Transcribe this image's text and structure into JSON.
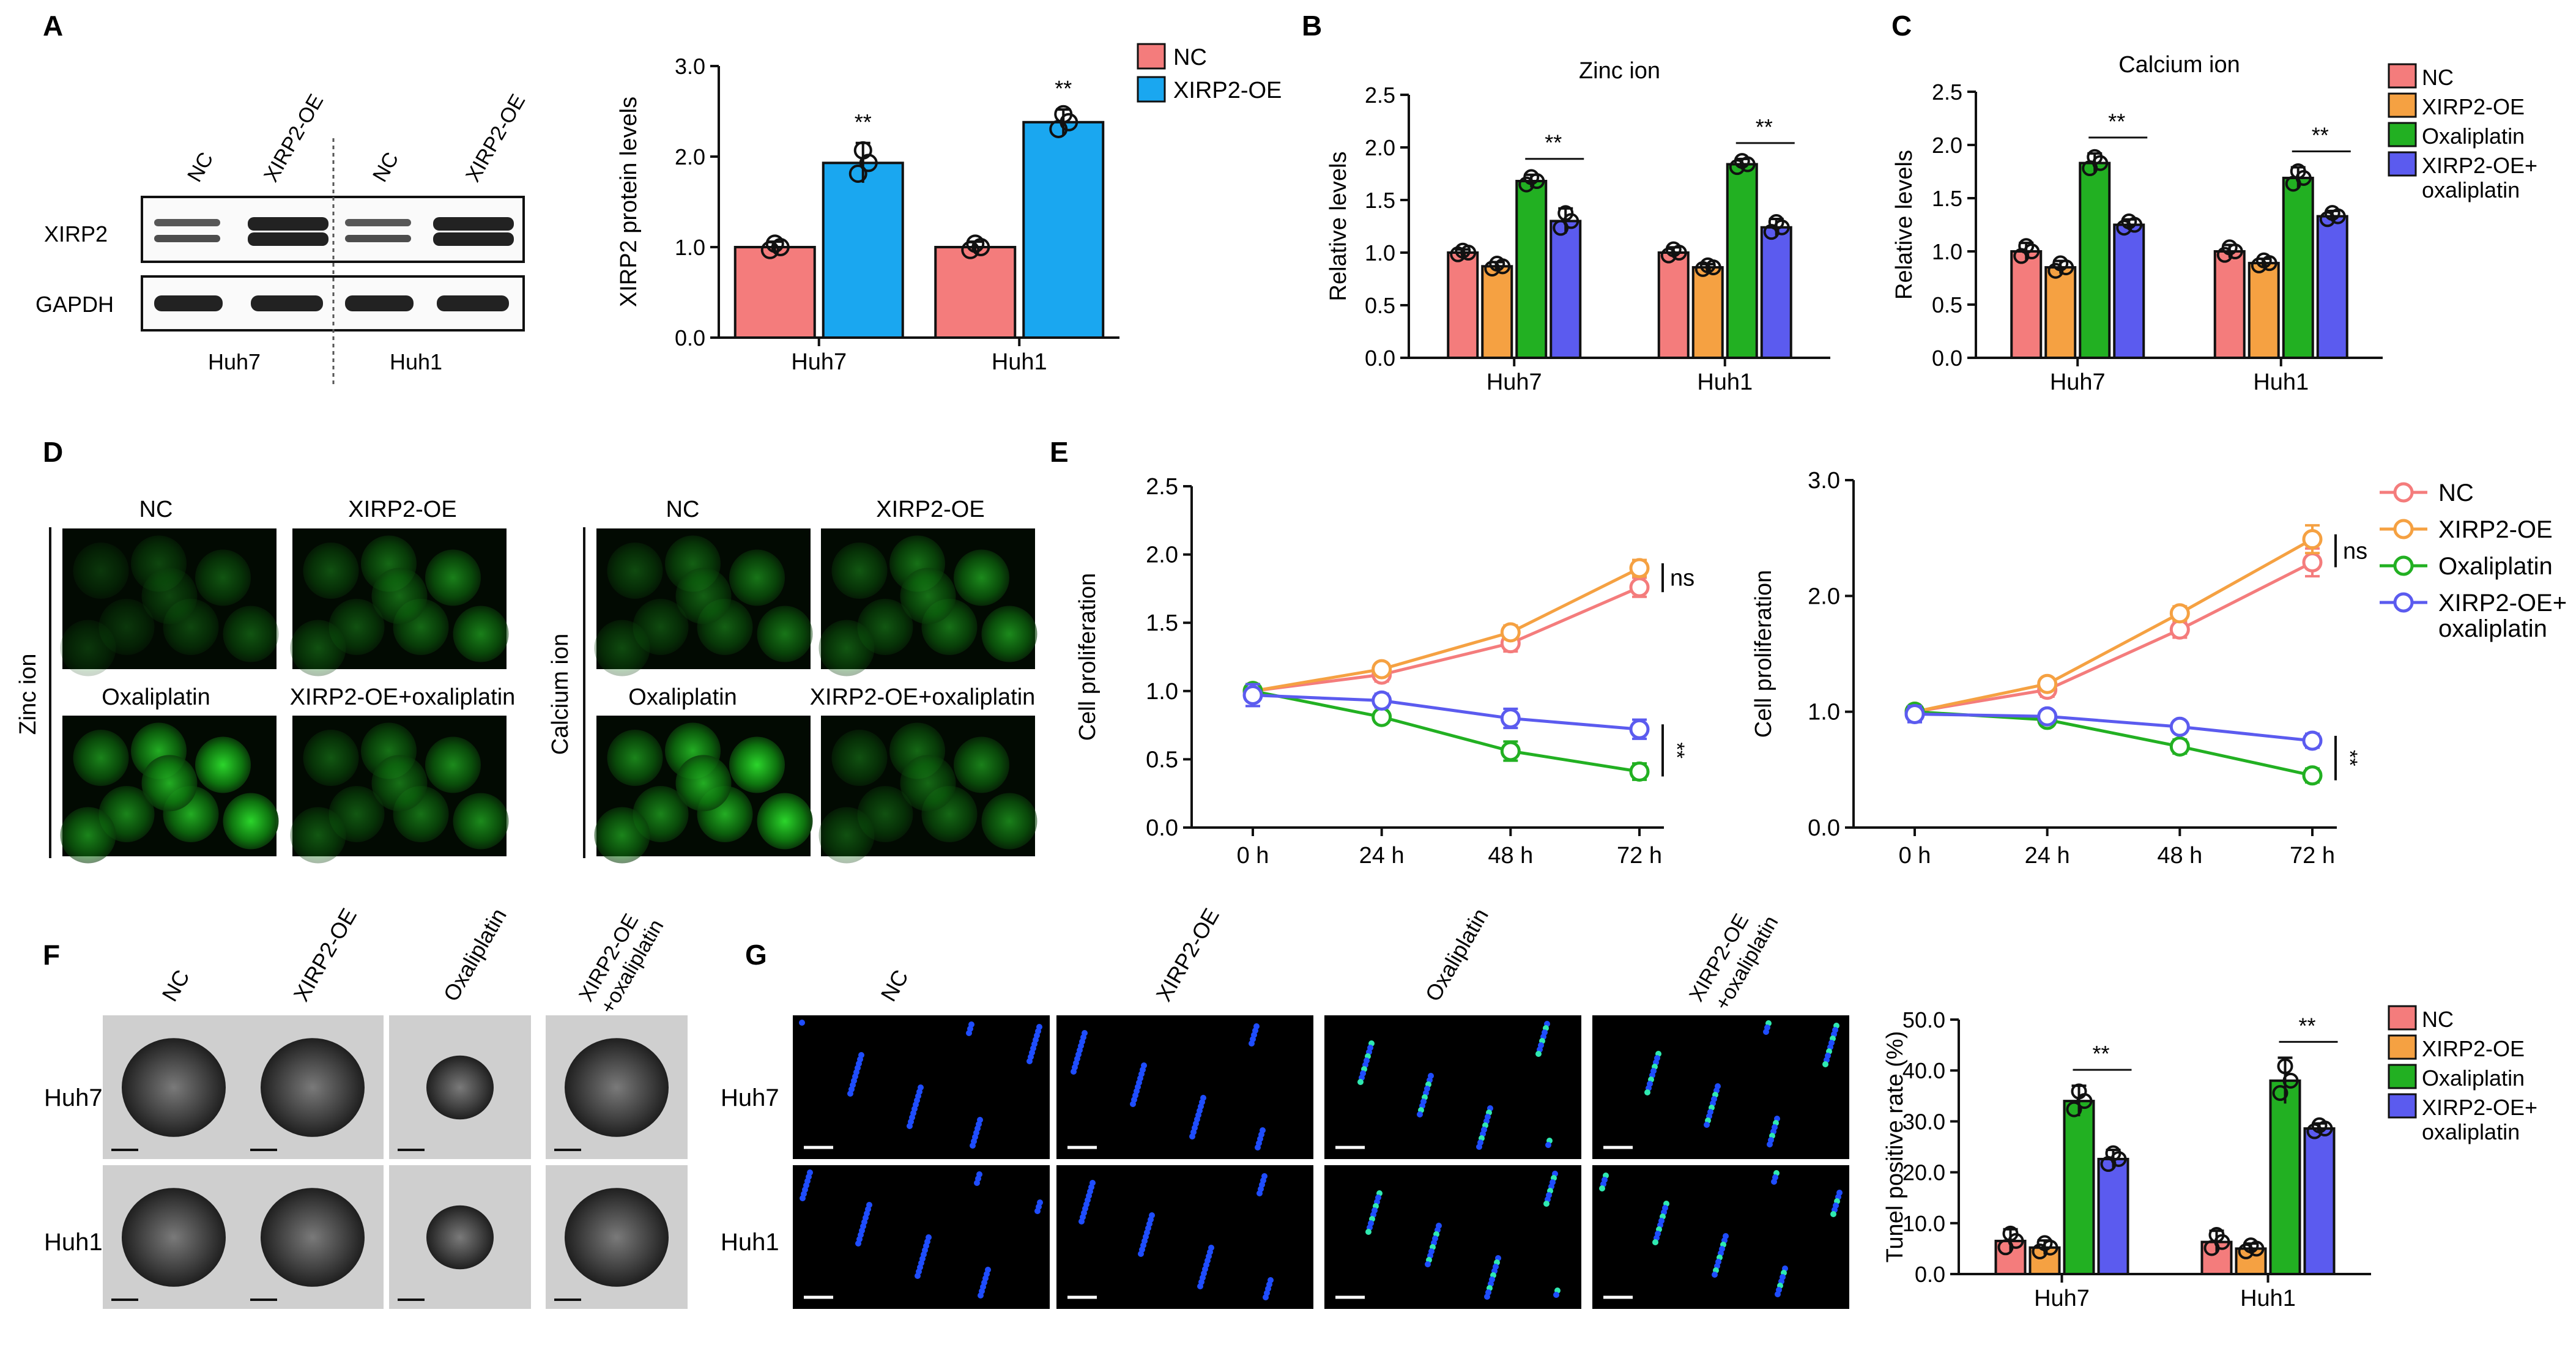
{
  "colors": {
    "nc": "#f47c7c",
    "xirp2": "#f5a142",
    "oxaliplatin": "#22b022",
    "combo": "#5b5bef",
    "xirp2_oe_A": "#1aa7f0"
  },
  "panel_labels": {
    "A": "A",
    "B": "B",
    "C": "C",
    "D": "D",
    "E": "E",
    "F": "F",
    "G": "G"
  },
  "panelA": {
    "blot_lanes": [
      "NC",
      "XIRP2-OE",
      "NC",
      "XIRP2-OE"
    ],
    "blot_rows": [
      "XIRP2",
      "GAPDH"
    ],
    "blot_cells": [
      "Huh7",
      "Huh1"
    ]
  },
  "panelD": {
    "zinc_group": "Zinc ion",
    "calcium_group": "Calcium ion",
    "top_labels": [
      "NC",
      "XIRP2-OE"
    ],
    "bottom_labels": [
      "Oxaliplatin",
      "XIRP2-OE+oxaliplatin"
    ]
  },
  "panelF": {
    "cols": [
      "NC",
      "XIRP2-OE",
      "Oxaliplatin",
      "XIRP2-OE\n+oxaliplatin"
    ],
    "rows": [
      "Huh7",
      "Huh1"
    ]
  },
  "panelG": {
    "cols": [
      "NC",
      "XIRP2-OE",
      "Oxaliplatin",
      "XIRP2-OE\n+oxaliplatin"
    ],
    "rows": [
      "Huh7",
      "Huh1"
    ]
  },
  "legend4": [
    "NC",
    "XIRP2-OE",
    "Oxaliplatin",
    "XIRP2-OE+\noxaliplatin"
  ],
  "legend4b": [
    "NC",
    "XIRP2-OE",
    "Oxaliplatin",
    "XIRP2-OE+\noxaliplatin"
  ],
  "chart_data": [
    {
      "id": "A",
      "type": "bar",
      "title": "",
      "ylabel": "XIRP2 protein levels",
      "categories": [
        "Huh7",
        "Huh1"
      ],
      "ylim": [
        0,
        3.0
      ],
      "yticks": [
        0.0,
        1.0,
        2.0,
        3.0
      ],
      "series": [
        {
          "name": "NC",
          "values": [
            1.0,
            1.0
          ],
          "err": [
            0.06,
            0.06
          ]
        },
        {
          "name": "XIRP2-OE",
          "values": [
            1.93,
            2.38
          ],
          "err": [
            0.22,
            0.14
          ]
        }
      ],
      "sig": [
        {
          "cat": 0,
          "bar": 1,
          "label": "**"
        },
        {
          "cat": 1,
          "bar": 1,
          "label": "**"
        }
      ]
    },
    {
      "id": "B",
      "type": "bar",
      "title": "Zinc ion",
      "ylabel": "Relative levels",
      "categories": [
        "Huh7",
        "Huh1"
      ],
      "ylim": [
        0,
        2.5
      ],
      "yticks": [
        0.0,
        0.5,
        1.0,
        1.5,
        2.0,
        2.5
      ],
      "series": [
        {
          "name": "NC",
          "values": [
            1.0,
            1.0
          ],
          "err": [
            0.03,
            0.05
          ]
        },
        {
          "name": "XIRP2-OE",
          "values": [
            0.87,
            0.86
          ],
          "err": [
            0.04,
            0.03
          ]
        },
        {
          "name": "Oxaliplatin",
          "values": [
            1.68,
            1.84
          ],
          "err": [
            0.06,
            0.05
          ]
        },
        {
          "name": "XIRP2-OE+oxaliplatin",
          "values": [
            1.3,
            1.24
          ],
          "err": [
            0.12,
            0.08
          ]
        }
      ],
      "sig": [
        {
          "cat": 0,
          "label": "**"
        },
        {
          "cat": 1,
          "label": "**"
        }
      ]
    },
    {
      "id": "C",
      "type": "bar",
      "title": "Calcium ion",
      "ylabel": "Relative levels",
      "categories": [
        "Huh7",
        "Huh1"
      ],
      "ylim": [
        0,
        2.5
      ],
      "yticks": [
        0.0,
        0.5,
        1.0,
        1.5,
        2.0,
        2.5
      ],
      "series": [
        {
          "name": "NC",
          "values": [
            1.0,
            1.0
          ],
          "err": [
            0.08,
            0.06
          ]
        },
        {
          "name": "XIRP2-OE",
          "values": [
            0.85,
            0.89
          ],
          "err": [
            0.06,
            0.04
          ]
        },
        {
          "name": "Oxaliplatin",
          "values": [
            1.83,
            1.69
          ],
          "err": [
            0.09,
            0.1
          ]
        },
        {
          "name": "XIRP2-OE+oxaliplatin",
          "values": [
            1.25,
            1.33
          ],
          "err": [
            0.05,
            0.05
          ]
        }
      ],
      "sig": [
        {
          "cat": 0,
          "label": "**"
        },
        {
          "cat": 1,
          "label": "**"
        }
      ]
    },
    {
      "id": "E1",
      "type": "line",
      "ylabel": "Cell proliferation",
      "x": [
        "0 h",
        "24 h",
        "48 h",
        "72 h"
      ],
      "ylim": [
        0,
        2.5
      ],
      "yticks": [
        0.0,
        0.5,
        1.0,
        1.5,
        2.0,
        2.5
      ],
      "series": [
        {
          "name": "NC",
          "values": [
            1.0,
            1.12,
            1.35,
            1.76
          ],
          "err": [
            0.05,
            0.05,
            0.06,
            0.07
          ]
        },
        {
          "name": "XIRP2-OE",
          "values": [
            1.0,
            1.16,
            1.43,
            1.9
          ],
          "err": [
            0.05,
            0.04,
            0.05,
            0.06
          ]
        },
        {
          "name": "Oxaliplatin",
          "values": [
            1.0,
            0.81,
            0.56,
            0.41
          ],
          "err": [
            0.05,
            0.03,
            0.07,
            0.06
          ]
        },
        {
          "name": "XIRP2-OE+oxaliplatin",
          "values": [
            0.97,
            0.93,
            0.8,
            0.72
          ],
          "err": [
            0.08,
            0.05,
            0.07,
            0.07
          ]
        }
      ],
      "annotations": [
        {
          "label": "ns",
          "between": [
            0,
            1
          ]
        },
        {
          "label": "**",
          "between": [
            2,
            3
          ]
        }
      ]
    },
    {
      "id": "E2",
      "type": "line",
      "ylabel": "Cell proliferation",
      "x": [
        "0 h",
        "24 h",
        "48 h",
        "72 h"
      ],
      "ylim": [
        0,
        3.0
      ],
      "yticks": [
        0.0,
        1.0,
        2.0,
        3.0
      ],
      "series": [
        {
          "name": "NC",
          "values": [
            1.0,
            1.19,
            1.71,
            2.29
          ],
          "err": [
            0.05,
            0.06,
            0.07,
            0.12
          ]
        },
        {
          "name": "XIRP2-OE",
          "values": [
            1.0,
            1.24,
            1.85,
            2.49
          ],
          "err": [
            0.05,
            0.05,
            0.06,
            0.12
          ]
        },
        {
          "name": "Oxaliplatin",
          "values": [
            1.0,
            0.93,
            0.7,
            0.45
          ],
          "err": [
            0.05,
            0.04,
            0.06,
            0.06
          ]
        },
        {
          "name": "XIRP2-OE+oxaliplatin",
          "values": [
            0.98,
            0.96,
            0.87,
            0.75
          ],
          "err": [
            0.07,
            0.04,
            0.05,
            0.06
          ]
        }
      ],
      "annotations": [
        {
          "label": "ns",
          "between": [
            0,
            1
          ]
        },
        {
          "label": "**",
          "between": [
            2,
            3
          ]
        }
      ]
    },
    {
      "id": "G",
      "type": "bar",
      "title": "",
      "ylabel": "Tunel positive rate (%)",
      "categories": [
        "Huh7",
        "Huh1"
      ],
      "ylim": [
        0,
        50
      ],
      "yticks": [
        0.0,
        10.0,
        20.0,
        30.0,
        40.0,
        50.0
      ],
      "series": [
        {
          "name": "NC",
          "values": [
            6.5,
            6.3
          ],
          "err": [
            2.3,
            2.2
          ]
        },
        {
          "name": "XIRP2-OE",
          "values": [
            5.2,
            5.0
          ],
          "err": [
            1.4,
            1.0
          ]
        },
        {
          "name": "Oxaliplatin",
          "values": [
            34.0,
            38.0
          ],
          "err": [
            3.0,
            4.5
          ]
        },
        {
          "name": "XIRP2-OE+oxaliplatin",
          "values": [
            22.6,
            28.6
          ],
          "err": [
            1.8,
            1.0
          ]
        }
      ],
      "sig": [
        {
          "cat": 0,
          "label": "**"
        },
        {
          "cat": 1,
          "label": "**"
        }
      ]
    }
  ]
}
